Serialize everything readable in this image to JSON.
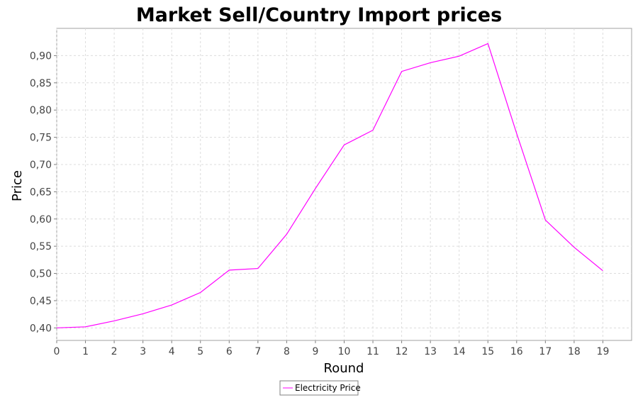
{
  "chart_data": {
    "type": "line",
    "title": "Market Sell/Country Import prices",
    "xlabel": "Round",
    "ylabel": "Price",
    "x": [
      0,
      1,
      2,
      3,
      4,
      5,
      6,
      7,
      8,
      9,
      10,
      11,
      12,
      13,
      14,
      15,
      16,
      17,
      18,
      19
    ],
    "x_ticks": [
      "0",
      "1",
      "2",
      "3",
      "4",
      "5",
      "6",
      "7",
      "8",
      "9",
      "10",
      "11",
      "12",
      "13",
      "14",
      "15",
      "16",
      "17",
      "18",
      "19"
    ],
    "xlim": [
      0,
      20
    ],
    "ylim": [
      0.377,
      0.95
    ],
    "y_ticks": [
      0.4,
      0.45,
      0.5,
      0.55,
      0.6,
      0.65,
      0.7,
      0.75,
      0.8,
      0.85,
      0.9
    ],
    "y_tick_labels": [
      "0,40",
      "0,45",
      "0,50",
      "0,55",
      "0,60",
      "0,65",
      "0,70",
      "0,75",
      "0,80",
      "0,85",
      "0,90"
    ],
    "grid": true,
    "legend_position": "bottom-center",
    "series": [
      {
        "name": "Electricity Price",
        "color": "#ff00ff",
        "values": [
          0.4,
          0.402,
          0.413,
          0.426,
          0.442,
          0.465,
          0.506,
          0.509,
          0.572,
          0.656,
          0.736,
          0.763,
          0.871,
          0.887,
          0.899,
          0.922,
          0.757,
          0.598,
          0.548,
          0.505
        ]
      }
    ]
  }
}
